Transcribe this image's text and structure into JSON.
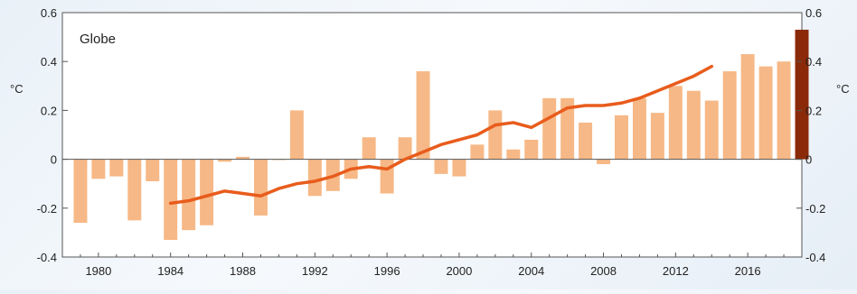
{
  "chart_data": {
    "type": "bar",
    "title": "Globe",
    "ylabel_left": "°C",
    "ylabel_right": "°C",
    "ylim": [
      -0.4,
      0.6
    ],
    "yticks": [
      "0.6",
      "0.4",
      "0.2",
      "0",
      "-0.2",
      "-0.4"
    ],
    "ytick_values": [
      0.6,
      0.4,
      0.2,
      0,
      -0.2,
      -0.4
    ],
    "xlim": [
      1978,
      2019
    ],
    "xticks": [
      1980,
      1984,
      1988,
      1992,
      1996,
      2000,
      2004,
      2008,
      2012,
      2016
    ],
    "grid": false,
    "bar_color": "#f6b886",
    "highlight_color": "#8b2a08",
    "line_color": "#e85c1c",
    "axis_color": "#555555",
    "series": [
      {
        "type": "bar",
        "years": [
          1979,
          1980,
          1981,
          1982,
          1983,
          1984,
          1985,
          1986,
          1987,
          1988,
          1989,
          1990,
          1991,
          1992,
          1993,
          1994,
          1995,
          1996,
          1997,
          1998,
          1999,
          2000,
          2001,
          2002,
          2003,
          2004,
          2005,
          2006,
          2007,
          2008,
          2009,
          2010,
          2011,
          2012,
          2013,
          2014,
          2015,
          2016,
          2017,
          2018
        ],
        "values": [
          -0.26,
          -0.08,
          -0.07,
          -0.25,
          -0.09,
          -0.33,
          -0.29,
          -0.27,
          -0.01,
          0.01,
          -0.23,
          0.0,
          0.2,
          -0.15,
          -0.13,
          -0.08,
          0.09,
          -0.14,
          0.09,
          0.36,
          -0.06,
          -0.07,
          0.06,
          0.2,
          0.04,
          0.08,
          0.25,
          0.25,
          0.15,
          -0.02,
          0.18,
          0.25,
          0.19,
          0.3,
          0.28,
          0.24,
          0.36,
          0.43,
          0.38,
          0.4
        ]
      },
      {
        "type": "highlight_bar",
        "years": [
          2019
        ],
        "values": [
          0.53
        ]
      },
      {
        "type": "line",
        "x": [
          1984,
          1985,
          1986,
          1987,
          1988,
          1989,
          1990,
          1991,
          1992,
          1993,
          1994,
          1995,
          1996,
          1997,
          1998,
          1999,
          2000,
          2001,
          2002,
          2003,
          2004,
          2005,
          2006,
          2007,
          2008,
          2009,
          2010,
          2011,
          2012,
          2013,
          2014
        ],
        "values": [
          -0.18,
          -0.17,
          -0.15,
          -0.13,
          -0.14,
          -0.15,
          -0.12,
          -0.1,
          -0.09,
          -0.07,
          -0.04,
          -0.03,
          -0.04,
          0.0,
          0.03,
          0.06,
          0.08,
          0.1,
          0.14,
          0.15,
          0.13,
          0.17,
          0.21,
          0.22,
          0.22,
          0.23,
          0.25,
          0.28,
          0.31,
          0.34,
          0.38
        ]
      }
    ]
  }
}
